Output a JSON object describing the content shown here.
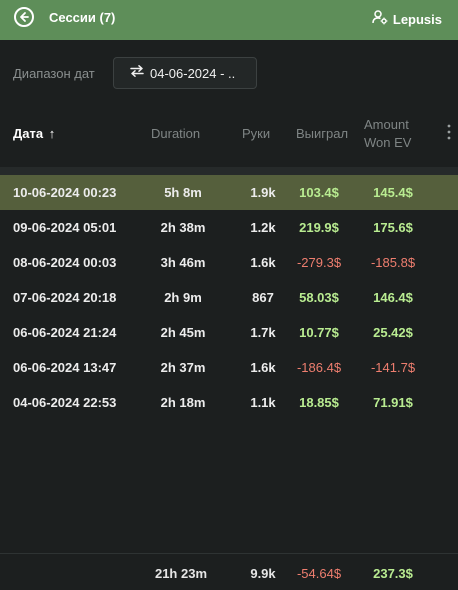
{
  "header": {
    "title": "Сессии (7)",
    "user": "Lepusis",
    "back_icon": "back-arrow-circle-icon",
    "user_icon": "user-gear-icon",
    "background": "#5e8e59"
  },
  "filter": {
    "label": "Диапазон дат",
    "value": "04-06-2024 - ..",
    "icon": "swap-arrows-icon"
  },
  "table": {
    "columns": {
      "date": "Дата",
      "sort_indicator": "↑",
      "duration": "Duration",
      "hands": "Руки",
      "won": "Выиграл",
      "ev_line1": "Amount",
      "ev_line2": "Won EV",
      "more_icon": "kebab-menu-icon"
    },
    "rows": [
      {
        "date": "10-06-2024 00:23",
        "duration": "5h 8m",
        "hands": "1.9k",
        "won": "103.4$",
        "ev": "145.4$",
        "won_sign": "pos",
        "ev_sign": "pos",
        "selected": true
      },
      {
        "date": "09-06-2024 05:01",
        "duration": "2h 38m",
        "hands": "1.2k",
        "won": "219.9$",
        "ev": "175.6$",
        "won_sign": "pos",
        "ev_sign": "pos",
        "selected": false
      },
      {
        "date": "08-06-2024 00:03",
        "duration": "3h 46m",
        "hands": "1.6k",
        "won": "-279.3$",
        "ev": "-185.8$",
        "won_sign": "neg",
        "ev_sign": "neg",
        "selected": false
      },
      {
        "date": "07-06-2024 20:18",
        "duration": "2h 9m",
        "hands": "867",
        "won": "58.03$",
        "ev": "146.4$",
        "won_sign": "pos",
        "ev_sign": "pos",
        "selected": false
      },
      {
        "date": "06-06-2024 21:24",
        "duration": "2h 45m",
        "hands": "1.7k",
        "won": "10.77$",
        "ev": "25.42$",
        "won_sign": "pos",
        "ev_sign": "pos",
        "selected": false
      },
      {
        "date": "06-06-2024 13:47",
        "duration": "2h 37m",
        "hands": "1.6k",
        "won": "-186.4$",
        "ev": "-141.7$",
        "won_sign": "neg",
        "ev_sign": "neg",
        "selected": false
      },
      {
        "date": "04-06-2024 22:53",
        "duration": "2h 18m",
        "hands": "1.1k",
        "won": "18.85$",
        "ev": "71.91$",
        "won_sign": "pos",
        "ev_sign": "pos",
        "selected": false
      }
    ],
    "totals": {
      "duration": "21h 23m",
      "hands": "9.9k",
      "won": "-54.64$",
      "ev": "237.3$",
      "won_sign": "neg",
      "ev_sign": "pos"
    }
  },
  "colors": {
    "positive": "#b9ec91",
    "negative": "#ee7e6f",
    "selected_row": "#555f3c"
  }
}
